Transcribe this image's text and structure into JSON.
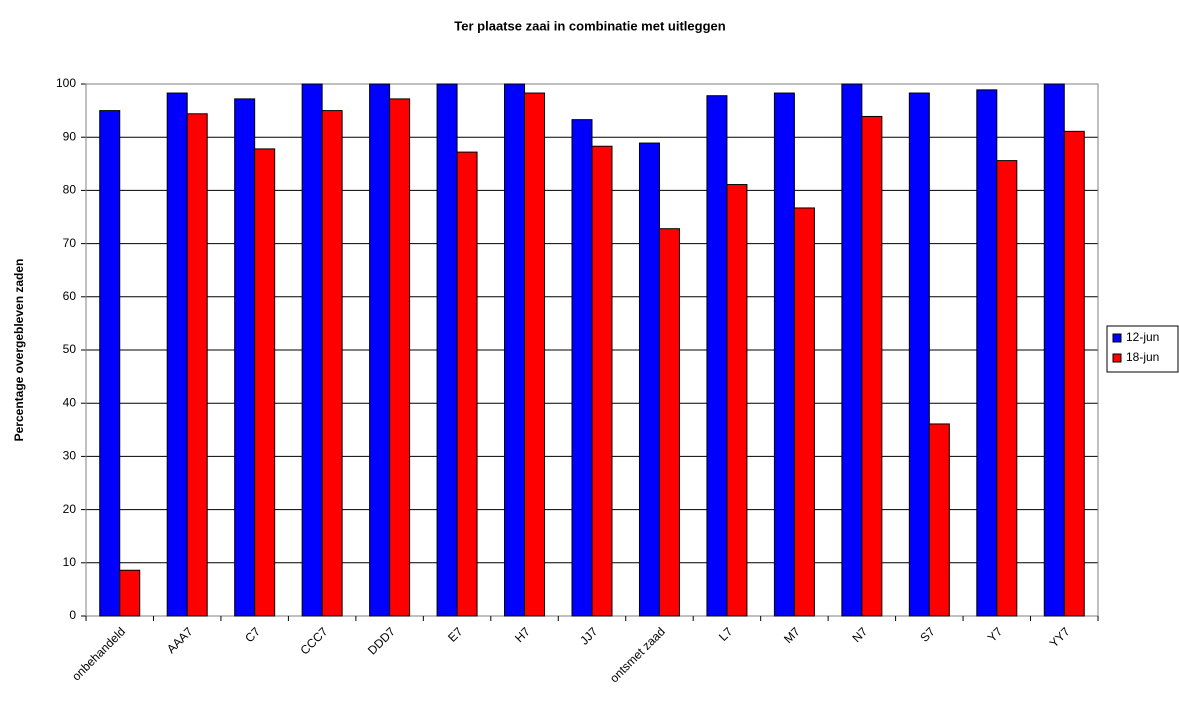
{
  "chart_data": {
    "type": "bar",
    "title": "Ter plaatse zaai in combinatie met uitleggen",
    "y_label": "Percentage overgebleven zaden",
    "categories": [
      "onbehandeld",
      "AAA7",
      "C7",
      "CCC7",
      "DDD7",
      "E7",
      "H7",
      "JJ7",
      "ontsmet zaad",
      "L7",
      "M7",
      "N7",
      "S7",
      "Y7",
      "YY7"
    ],
    "series": [
      {
        "name": "12-jun",
        "color": "#0000ff",
        "values": [
          95,
          98.3,
          97.2,
          100,
          100,
          100,
          100,
          93.3,
          88.9,
          97.8,
          98.3,
          100,
          98.3,
          98.9,
          100
        ]
      },
      {
        "name": "18-jun",
        "color": "#ff0000",
        "values": [
          8.6,
          94.4,
          87.8,
          95,
          97.2,
          87.2,
          98.3,
          88.3,
          72.8,
          81.1,
          76.7,
          93.9,
          36.1,
          85.6,
          91.1
        ]
      }
    ],
    "ylim": [
      0,
      100
    ],
    "yticks": [
      0,
      10,
      20,
      30,
      40,
      50,
      60,
      70,
      80,
      90,
      100
    ],
    "grid": true,
    "legend": "right"
  }
}
